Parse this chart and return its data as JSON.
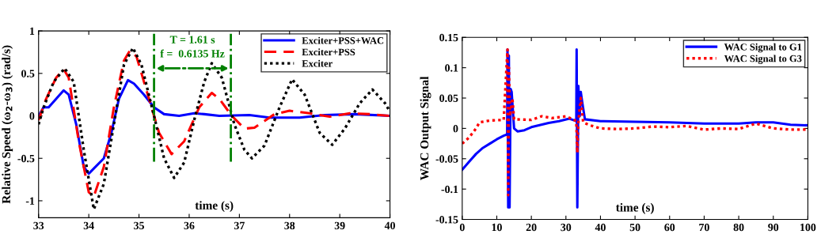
{
  "chart_data": [
    {
      "type": "line",
      "xlabel": "time (s)",
      "ylabel": "Relative Speed (ω$_{2}$-ω$_{3}$) (rad/s)",
      "xlim": [
        33,
        40
      ],
      "xticks": [
        33,
        34,
        35,
        36,
        37,
        38,
        39,
        40
      ],
      "ylim": [
        -1.2,
        1
      ],
      "yticks": [
        -1,
        -0.5,
        0,
        0.5,
        1
      ],
      "grid": false,
      "legend": "top right",
      "annotations": [
        "T = 1.61 s",
        "f =  0.6135 Hz"
      ],
      "ref_lines": [
        {
          "axis": "x",
          "value": 35.3,
          "color": "#008000",
          "line_style": "dashdot"
        },
        {
          "axis": "x",
          "value": 36.83,
          "color": "#008000",
          "line_style": "dashdot"
        }
      ],
      "series": [
        {
          "name": "Exciter+PSS+WAC",
          "color": "#0000ff",
          "line_style": "solid",
          "x": [
            33,
            33.1,
            33.2,
            33.35,
            33.5,
            33.6,
            33.75,
            33.9,
            34.0,
            34.1,
            34.3,
            34.45,
            34.6,
            34.78,
            34.9,
            35.1,
            35.3,
            35.5,
            35.8,
            36.1,
            36.3,
            36.6,
            37.2,
            37.6,
            38.2,
            38.7,
            39.3,
            40
          ],
          "values": [
            0,
            0.1,
            0.1,
            0.2,
            0.3,
            0.25,
            -0.1,
            -0.6,
            -0.68,
            -0.62,
            -0.5,
            -0.2,
            0.2,
            0.42,
            0.38,
            0.25,
            0.1,
            0.02,
            0,
            0.03,
            0.02,
            0,
            0.01,
            -0.02,
            -0.02,
            0.01,
            0.02,
            0
          ]
        },
        {
          "name": "Exciter+PSS",
          "color": "#ff0000",
          "line_style": "dashed",
          "x": [
            33,
            33.15,
            33.35,
            33.5,
            33.6,
            33.8,
            34.0,
            34.1,
            34.3,
            34.5,
            34.7,
            34.82,
            34.95,
            35.2,
            35.4,
            35.65,
            35.9,
            36.2,
            36.45,
            36.6,
            36.85,
            37.1,
            37.3,
            37.7,
            38.0,
            38.4,
            38.8,
            39.2,
            39.6,
            40
          ],
          "values": [
            -0.05,
            0.2,
            0.45,
            0.55,
            0.45,
            -0.3,
            -0.9,
            -0.95,
            -0.6,
            0.1,
            0.65,
            0.77,
            0.7,
            0.2,
            -0.2,
            -0.45,
            -0.3,
            0.1,
            0.27,
            0.2,
            0,
            -0.15,
            -0.14,
            0.02,
            0.06,
            0.03,
            -0.01,
            0.03,
            0.02,
            0
          ]
        },
        {
          "name": "Exciter",
          "color": "#000000",
          "line_style": "dotted",
          "x": [
            33,
            33.1,
            33.3,
            33.52,
            33.7,
            33.9,
            34.1,
            34.3,
            34.5,
            34.7,
            34.88,
            35.05,
            35.3,
            35.5,
            35.7,
            35.9,
            36.1,
            36.3,
            36.45,
            36.65,
            36.9,
            37.1,
            37.25,
            37.5,
            37.8,
            38.05,
            38.3,
            38.6,
            38.85,
            39.1,
            39.4,
            39.65,
            39.9,
            40
          ],
          "values": [
            -0.1,
            0.1,
            0.4,
            0.56,
            0.4,
            -0.4,
            -1.1,
            -0.8,
            -0.1,
            0.6,
            0.8,
            0.6,
            0,
            -0.5,
            -0.73,
            -0.55,
            -0.05,
            0.4,
            0.62,
            0.45,
            -0.1,
            -0.4,
            -0.5,
            -0.35,
            0.1,
            0.43,
            0.25,
            -0.2,
            -0.34,
            -0.15,
            0.15,
            0.31,
            0.15,
            0.05
          ]
        }
      ]
    },
    {
      "type": "line",
      "xlabel": "time (s)",
      "ylabel": "WAC Output Signal",
      "xlim": [
        0,
        100
      ],
      "xticks": [
        0,
        10,
        20,
        30,
        40,
        50,
        60,
        70,
        80,
        90,
        100
      ],
      "ylim": [
        -0.15,
        0.15
      ],
      "yticks": [
        -0.15,
        -0.1,
        -0.05,
        0,
        0.05,
        0.1,
        0.15
      ],
      "grid": false,
      "legend": "top right",
      "series": [
        {
          "name": "WAC Signal to G1",
          "color": "#0000ff",
          "line_style": "solid",
          "x": [
            0,
            2,
            4,
            6,
            8,
            10,
            12,
            13,
            13.1,
            13.3,
            13.5,
            13.7,
            14,
            14.3,
            15,
            16,
            18,
            20,
            25,
            28,
            31,
            33,
            33.1,
            33.3,
            33.6,
            34,
            34.3,
            34.8,
            35.5,
            40,
            50,
            60,
            70,
            80,
            85,
            90,
            95,
            100
          ],
          "values": [
            -0.068,
            -0.055,
            -0.042,
            -0.032,
            -0.025,
            -0.018,
            -0.012,
            -0.01,
            0.13,
            -0.13,
            0.12,
            -0.13,
            0.065,
            0.06,
            0.0,
            -0.005,
            -0.003,
            0.002,
            0.009,
            0.012,
            0.016,
            0.012,
            0.13,
            -0.13,
            0.07,
            0.02,
            0.06,
            0.04,
            0.015,
            0.012,
            0.011,
            0.01,
            0.008,
            0.008,
            0.01,
            0.01,
            0.006,
            0.005
          ]
        },
        {
          "name": "WAC Signal to G3",
          "color": "#ff0000",
          "line_style": "dotted",
          "x": [
            0,
            2,
            4,
            5,
            8,
            12,
            13.1,
            13.3,
            13.5,
            13.8,
            14.3,
            14.5,
            15,
            20,
            23,
            26,
            30,
            32,
            33,
            33.3,
            33.6,
            34.3,
            35,
            37,
            40,
            45,
            50,
            55,
            60,
            65,
            70,
            75,
            80,
            85,
            90,
            95,
            100
          ],
          "values": [
            -0.025,
            -0.015,
            0.0,
            0.01,
            0.013,
            0.014,
            0.13,
            -0.11,
            0.1,
            0.02,
            0.04,
            0.05,
            0.015,
            0.014,
            0.02,
            0.017,
            0.02,
            0.015,
            0.012,
            -0.04,
            0.01,
            0.05,
            0.01,
            0.005,
            0.0,
            -0.001,
            0.0,
            0.003,
            0.002,
            0.004,
            -0.002,
            0.0,
            -0.001,
            0.008,
            0.0,
            -0.002,
            -0.002
          ]
        }
      ]
    }
  ]
}
